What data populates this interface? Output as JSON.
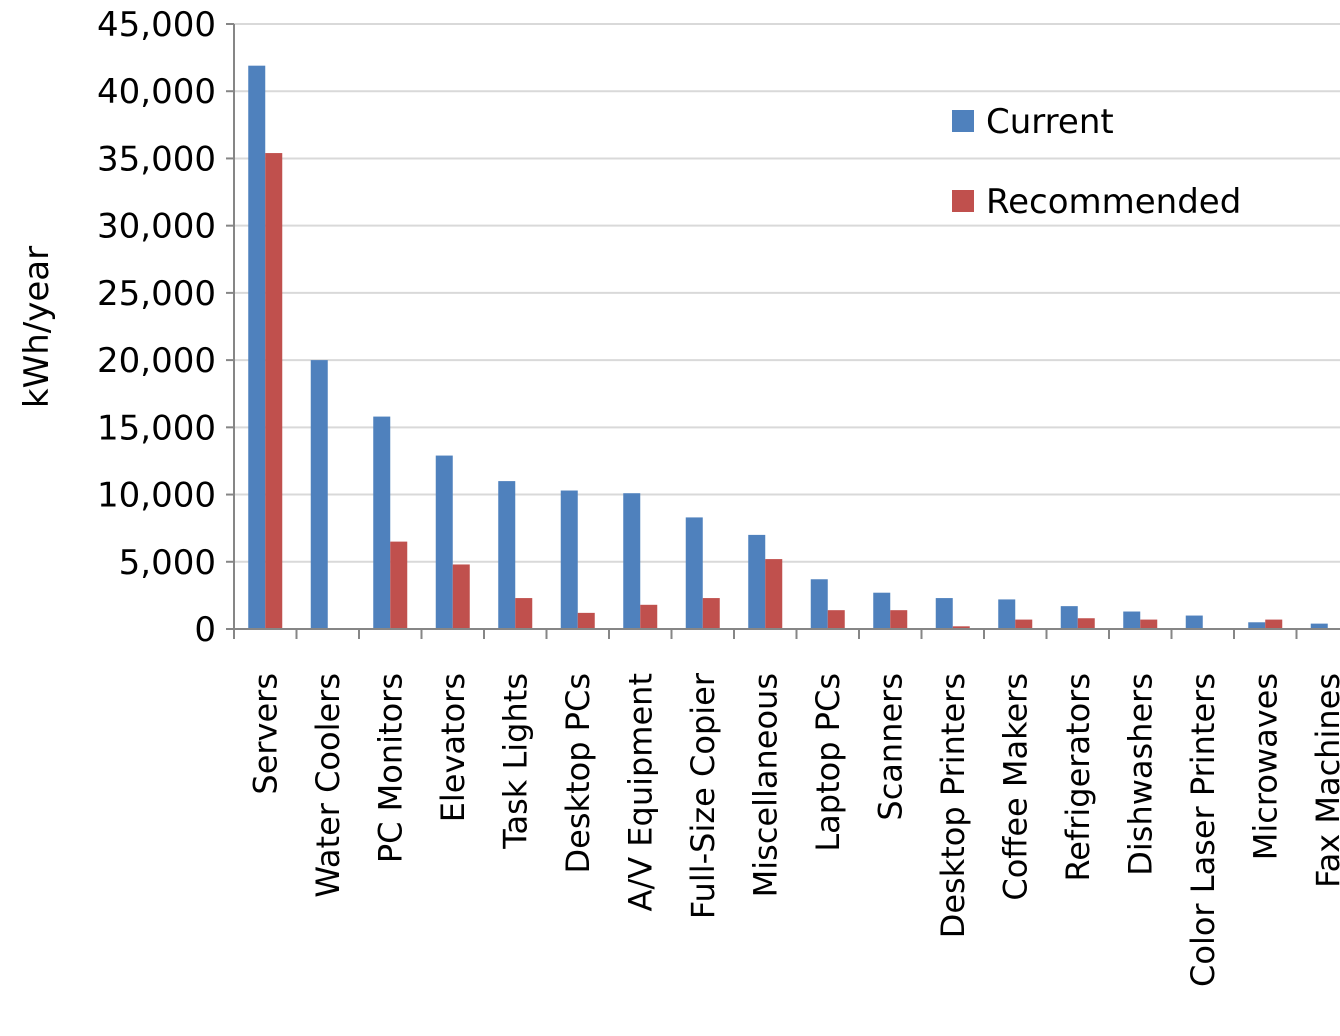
{
  "chart_data": {
    "type": "bar",
    "title": "",
    "xlabel": "",
    "ylabel": "kWh/year",
    "ylim": [
      0,
      45000
    ],
    "yticks": [
      0,
      5000,
      10000,
      15000,
      20000,
      25000,
      30000,
      35000,
      40000,
      45000
    ],
    "ytick_labels": [
      "0",
      "5,000",
      "10,000",
      "15,000",
      "20,000",
      "25,000",
      "30,000",
      "35,000",
      "40,000",
      "45,000"
    ],
    "grid": true,
    "legend_position": "top-right",
    "categories": [
      "Servers",
      "Water Coolers",
      "PC Monitors",
      "Elevators",
      "Task Lights",
      "Desktop PCs",
      "A/V Equipment",
      "Full-Size Copier",
      "Miscellaneous",
      "Laptop PCs",
      "Scanners",
      "Desktop Printers",
      "Coffee Makers",
      "Refrigerators",
      "Dishwashers",
      "Color Laser Printers",
      "Microwaves",
      "Fax Machines"
    ],
    "series": [
      {
        "name": "Current",
        "color": "#4f81bd",
        "values": [
          41900,
          20000,
          15800,
          12900,
          11000,
          10300,
          10100,
          8300,
          7000,
          3700,
          2700,
          2300,
          2200,
          1700,
          1300,
          1000,
          500,
          400
        ]
      },
      {
        "name": "Recommended",
        "color": "#c0504d",
        "values": [
          35400,
          0,
          6500,
          4800,
          2300,
          1200,
          1800,
          2300,
          5200,
          1400,
          1400,
          200,
          700,
          800,
          700,
          0,
          700,
          0
        ]
      }
    ]
  }
}
